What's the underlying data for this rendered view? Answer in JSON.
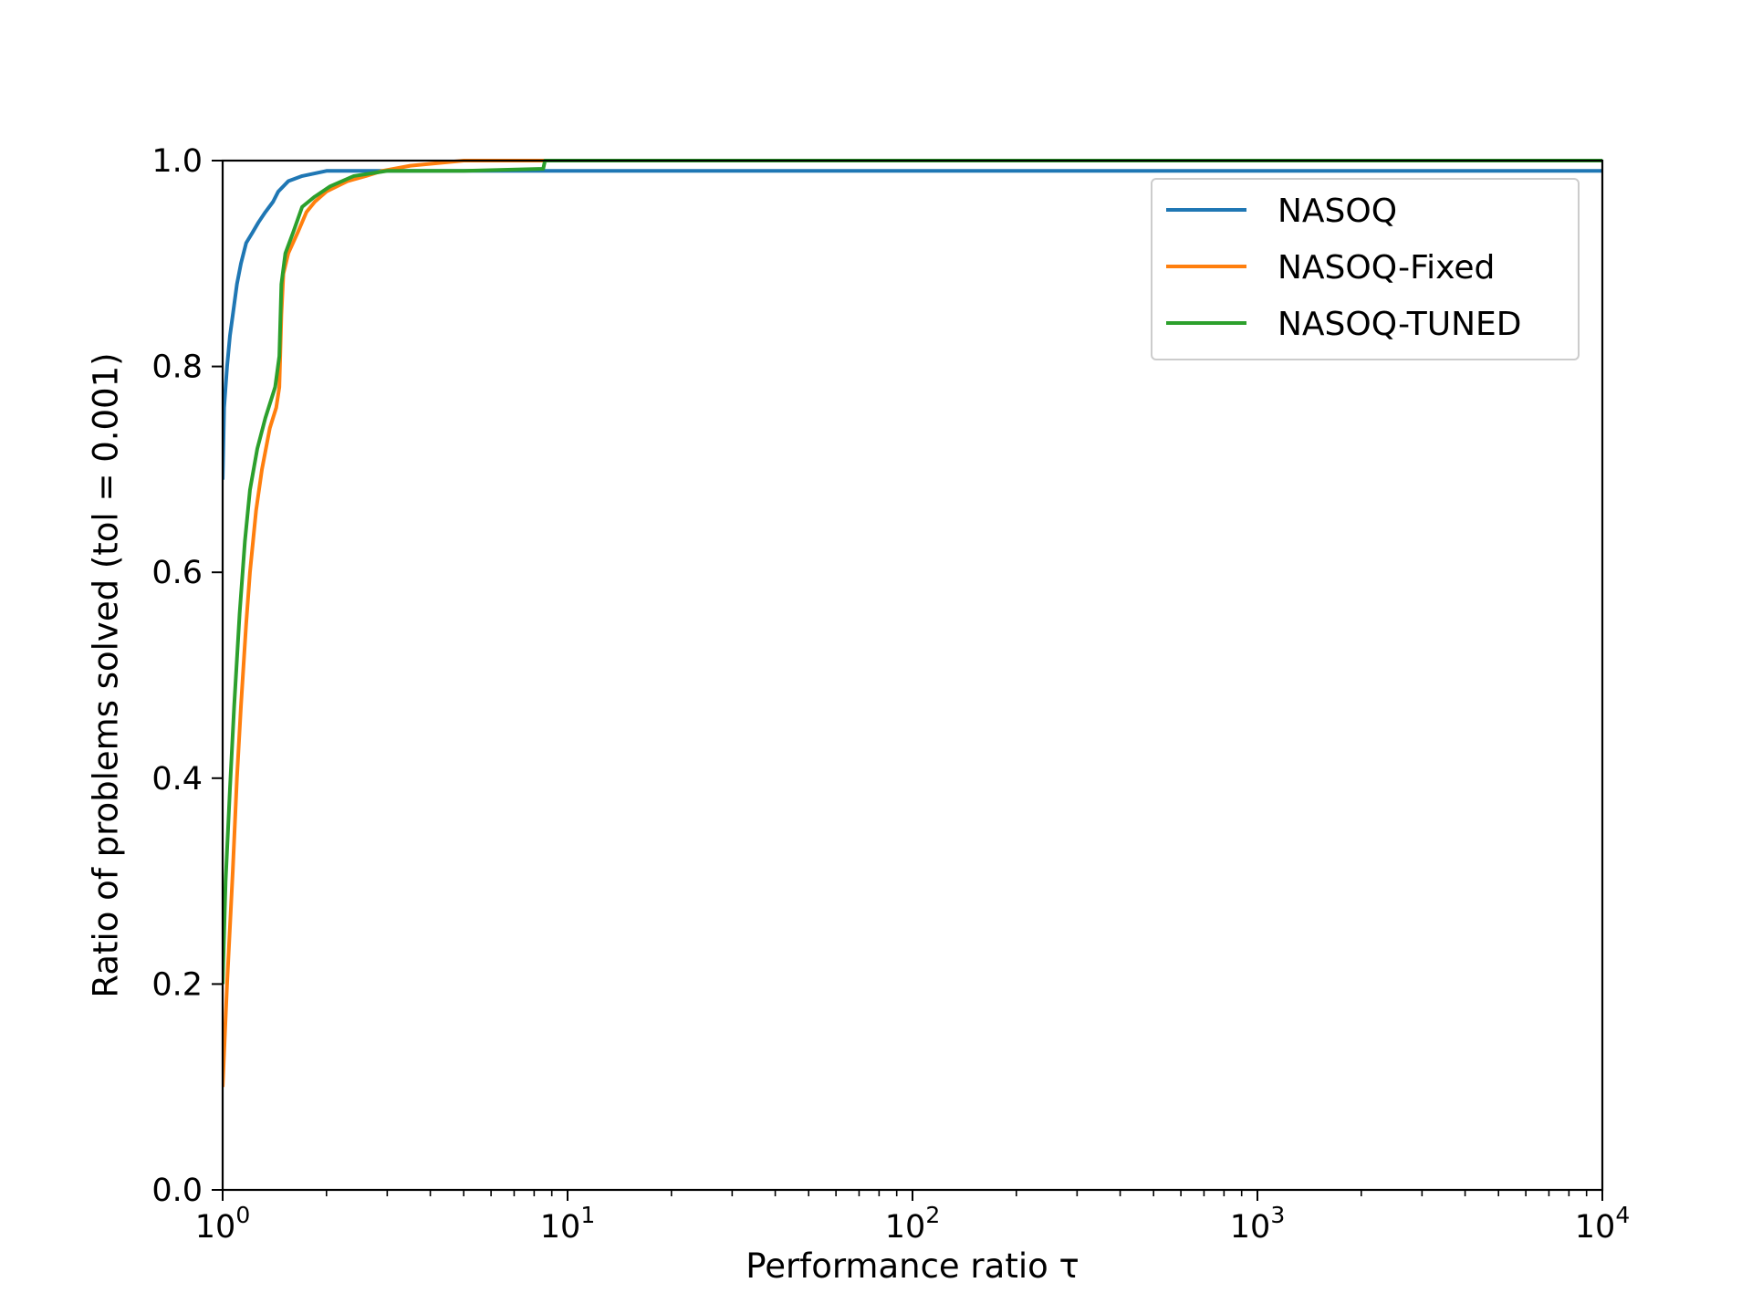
{
  "chart_data": {
    "type": "line",
    "title": "",
    "xlabel": "Performance ratio τ",
    "ylabel": "Ratio of problems solved (tol = 0.001)",
    "xscale": "log",
    "xlim": [
      1,
      10000
    ],
    "ylim": [
      0.0,
      1.0
    ],
    "xticks": [
      {
        "value": 1,
        "base": "10",
        "exp": "0"
      },
      {
        "value": 10,
        "base": "10",
        "exp": "1"
      },
      {
        "value": 100,
        "base": "10",
        "exp": "2"
      },
      {
        "value": 1000,
        "base": "10",
        "exp": "3"
      },
      {
        "value": 10000,
        "base": "10",
        "exp": "4"
      }
    ],
    "yticks": [
      "0.0",
      "0.2",
      "0.4",
      "0.6",
      "0.8",
      "1.0"
    ],
    "grid": false,
    "legend_position": "upper right",
    "series": [
      {
        "name": "NASOQ",
        "color": "#1f77b4",
        "points": [
          [
            1.0,
            0.69
          ],
          [
            1.01,
            0.76
          ],
          [
            1.03,
            0.8
          ],
          [
            1.05,
            0.83
          ],
          [
            1.07,
            0.85
          ],
          [
            1.1,
            0.88
          ],
          [
            1.13,
            0.9
          ],
          [
            1.17,
            0.92
          ],
          [
            1.22,
            0.93
          ],
          [
            1.27,
            0.94
          ],
          [
            1.33,
            0.95
          ],
          [
            1.4,
            0.96
          ],
          [
            1.45,
            0.97
          ],
          [
            1.55,
            0.98
          ],
          [
            1.7,
            0.985
          ],
          [
            2.0,
            0.99
          ],
          [
            3.0,
            0.99
          ],
          [
            10000,
            0.99
          ]
        ]
      },
      {
        "name": "NASOQ-Fixed",
        "color": "#ff7f0e",
        "points": [
          [
            1.0,
            0.1
          ],
          [
            1.03,
            0.2
          ],
          [
            1.07,
            0.31
          ],
          [
            1.1,
            0.4
          ],
          [
            1.13,
            0.47
          ],
          [
            1.17,
            0.55
          ],
          [
            1.2,
            0.6
          ],
          [
            1.25,
            0.66
          ],
          [
            1.3,
            0.7
          ],
          [
            1.37,
            0.74
          ],
          [
            1.43,
            0.76
          ],
          [
            1.46,
            0.78
          ],
          [
            1.48,
            0.85
          ],
          [
            1.5,
            0.89
          ],
          [
            1.55,
            0.91
          ],
          [
            1.65,
            0.93
          ],
          [
            1.75,
            0.95
          ],
          [
            1.85,
            0.96
          ],
          [
            2.0,
            0.97
          ],
          [
            2.3,
            0.98
          ],
          [
            2.6,
            0.985
          ],
          [
            2.9,
            0.99
          ],
          [
            3.5,
            0.995
          ],
          [
            5.0,
            1.0
          ],
          [
            10000,
            1.0
          ]
        ]
      },
      {
        "name": "NASOQ-TUNED",
        "color": "#2ca02c",
        "points": [
          [
            1.0,
            0.2
          ],
          [
            1.02,
            0.3
          ],
          [
            1.05,
            0.39
          ],
          [
            1.08,
            0.47
          ],
          [
            1.12,
            0.56
          ],
          [
            1.16,
            0.63
          ],
          [
            1.2,
            0.68
          ],
          [
            1.26,
            0.72
          ],
          [
            1.33,
            0.75
          ],
          [
            1.42,
            0.78
          ],
          [
            1.46,
            0.81
          ],
          [
            1.48,
            0.88
          ],
          [
            1.52,
            0.91
          ],
          [
            1.6,
            0.93
          ],
          [
            1.7,
            0.955
          ],
          [
            1.85,
            0.965
          ],
          [
            2.05,
            0.975
          ],
          [
            2.4,
            0.985
          ],
          [
            3.0,
            0.99
          ],
          [
            5.0,
            0.99
          ],
          [
            8.5,
            0.992
          ],
          [
            8.6,
            1.0
          ],
          [
            10000,
            1.0
          ]
        ]
      }
    ]
  }
}
